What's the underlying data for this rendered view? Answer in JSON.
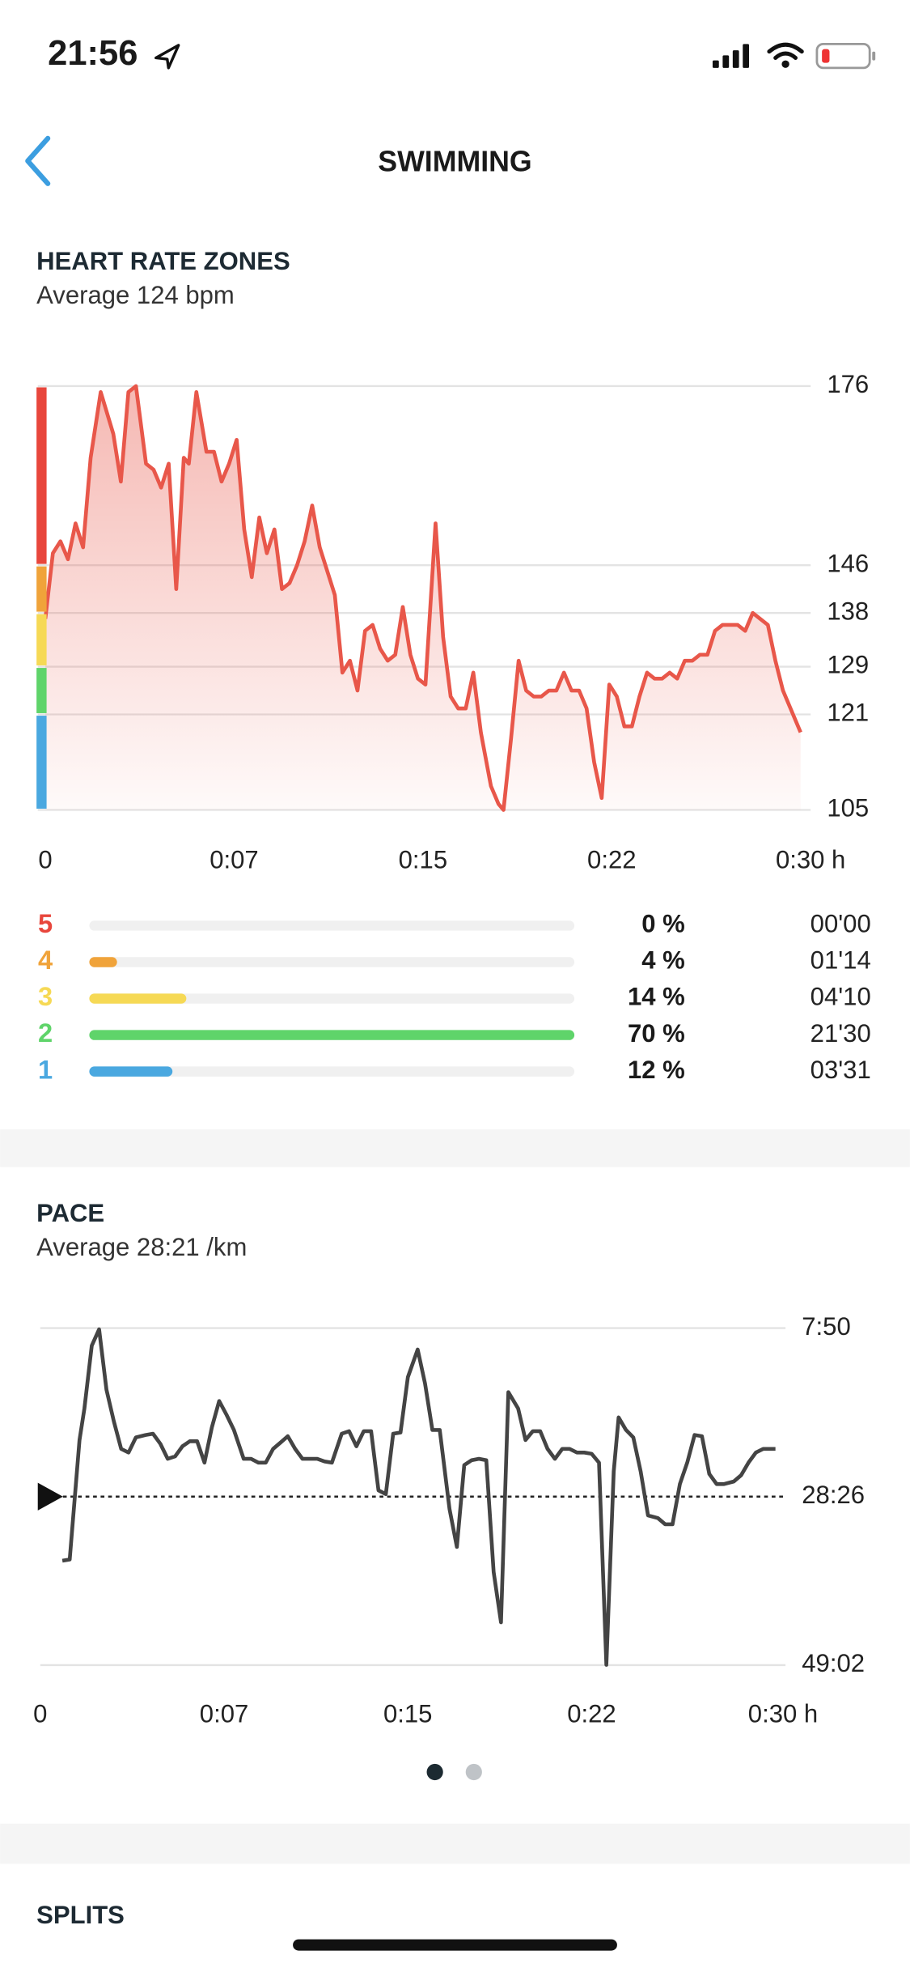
{
  "status_bar": {
    "time": "21:56"
  },
  "header": {
    "title": "SWIMMING"
  },
  "heart_rate": {
    "title": "HEART RATE ZONES",
    "subtitle": "Average 124 bpm",
    "chart_data": {
      "type": "area",
      "color": "#e8574a",
      "xlim": [
        0,
        30
      ],
      "xticks": [
        0,
        {
          "value": 7.5,
          "label": "0:07"
        },
        {
          "value": 15,
          "label": "0:15"
        },
        {
          "value": 22.5,
          "label": "0:22"
        },
        {
          "value": 30,
          "label": "0:30 h"
        }
      ],
      "ylim": [
        105,
        176
      ],
      "yticks": [
        105,
        121,
        129,
        138,
        146,
        176
      ],
      "grid": true,
      "x": [
        0,
        0.3,
        0.6,
        0.9,
        1.2,
        1.5,
        1.8,
        2.2,
        2.7,
        3.0,
        3.3,
        3.6,
        4.0,
        4.3,
        4.6,
        4.9,
        5.2,
        5.5,
        5.7,
        6.0,
        6.4,
        6.7,
        7.0,
        7.3,
        7.6,
        7.9,
        8.2,
        8.5,
        8.8,
        9.1,
        9.4,
        9.7,
        10.0,
        10.3,
        10.6,
        10.9,
        11.2,
        11.5,
        11.8,
        12.1,
        12.4,
        12.7,
        13.0,
        13.3,
        13.6,
        13.9,
        14.2,
        14.5,
        14.8,
        15.1,
        15.5,
        15.8,
        16.1,
        16.4,
        16.7,
        17.0,
        17.3,
        17.7,
        18.0,
        18.2,
        18.5,
        18.8,
        19.1,
        19.4,
        19.7,
        20.0,
        20.3,
        20.6,
        20.9,
        21.2,
        21.5,
        21.8,
        22.1,
        22.4,
        22.7,
        23.0,
        23.3,
        23.6,
        23.9,
        24.2,
        24.5,
        24.8,
        25.1,
        25.4,
        25.7,
        26.0,
        26.3,
        26.6,
        26.9,
        27.2,
        27.5,
        27.8,
        28.1,
        28.4,
        28.7,
        29.0,
        29.3,
        29.6,
        30.0
      ],
      "values": [
        137,
        148,
        150,
        147,
        153,
        149,
        164,
        175,
        168,
        160,
        175,
        176,
        163,
        162,
        159,
        163,
        142,
        164,
        163,
        175,
        165,
        165,
        160,
        163,
        167,
        152,
        144,
        154,
        148,
        152,
        142,
        143,
        146,
        150,
        156,
        149,
        145,
        141,
        128,
        130,
        125,
        135,
        136,
        132,
        130,
        131,
        139,
        131,
        127,
        126,
        153,
        134,
        124,
        122,
        122,
        128,
        118,
        109,
        106,
        105,
        117,
        130,
        125,
        124,
        124,
        125,
        125,
        128,
        125,
        125,
        122,
        113,
        107,
        126,
        124,
        119,
        119,
        124,
        128,
        127,
        127,
        128,
        127,
        130,
        130,
        131,
        131,
        135,
        136,
        136,
        136,
        135,
        138,
        137,
        136,
        130,
        125,
        122,
        118
      ]
    },
    "zones": [
      {
        "zone": 5,
        "color": "#e8463c",
        "percent": 0,
        "percent_label": "0 %",
        "duration": "00'00"
      },
      {
        "zone": 4,
        "color": "#f0a33a",
        "percent": 4,
        "percent_label": "4 %",
        "duration": "01'14"
      },
      {
        "zone": 3,
        "color": "#f6d955",
        "percent": 14,
        "percent_label": "14 %",
        "duration": "04'10"
      },
      {
        "zone": 2,
        "color": "#5fd46a",
        "percent": 70,
        "percent_label": "70 %",
        "duration": "21'30"
      },
      {
        "zone": 1,
        "color": "#4aa8e0",
        "percent": 12,
        "percent_label": "12 %",
        "duration": "03'31"
      }
    ]
  },
  "pace": {
    "title": "PACE",
    "subtitle": "Average 28:21 /km",
    "chart_data": {
      "type": "line",
      "color": "#444444",
      "xlim": [
        0,
        30
      ],
      "xticks": [
        0,
        {
          "value": 7.5,
          "label": "0:07"
        },
        {
          "value": 15,
          "label": "0:15"
        },
        {
          "value": 22.5,
          "label": "0:22"
        },
        {
          "value": 30,
          "label": "0:30 h"
        }
      ],
      "ylim": [
        470,
        2942
      ],
      "y_inverted": true,
      "yticks": [
        {
          "value": 470,
          "label": "7:50"
        },
        {
          "value": 1706,
          "label": "28:26"
        },
        {
          "value": 2942,
          "label": "49:02"
        }
      ],
      "grid": true,
      "x": [
        0.9,
        1.2,
        1.6,
        1.8,
        2.1,
        2.4,
        2.7,
        3.0,
        3.3,
        3.6,
        3.9,
        4.3,
        4.6,
        4.9,
        5.2,
        5.5,
        5.8,
        6.1,
        6.4,
        6.7,
        7.0,
        7.3,
        7.6,
        7.9,
        8.3,
        8.6,
        8.9,
        9.2,
        9.5,
        9.8,
        10.1,
        10.4,
        10.7,
        11.0,
        11.3,
        11.6,
        11.9,
        12.3,
        12.6,
        12.9,
        13.2,
        13.5,
        13.8,
        14.1,
        14.4,
        14.7,
        15.0,
        15.4,
        15.7,
        16.0,
        16.3,
        16.7,
        17.0,
        17.3,
        17.6,
        17.9,
        18.2,
        18.5,
        18.8,
        19.1,
        19.5,
        19.8,
        20.1,
        20.4,
        20.7,
        21.0,
        21.3,
        21.6,
        21.9,
        22.2,
        22.5,
        22.8,
        23.1,
        23.4,
        23.6,
        23.9,
        24.2,
        24.5,
        24.8,
        25.2,
        25.5,
        25.8,
        26.1,
        26.4,
        26.7,
        27.0,
        27.3,
        27.6,
        27.9,
        28.3,
        28.6,
        28.9,
        29.2,
        29.5,
        30.0
      ],
      "values": [
        2176,
        2167,
        1291,
        1060,
        599,
        479,
        922,
        1153,
        1356,
        1383,
        1272,
        1254,
        1245,
        1319,
        1429,
        1411,
        1337,
        1300,
        1300,
        1457,
        1199,
        1005,
        1106,
        1217,
        1429,
        1429,
        1457,
        1457,
        1356,
        1310,
        1263,
        1356,
        1429,
        1429,
        1429,
        1448,
        1457,
        1245,
        1226,
        1337,
        1226,
        1226,
        1660,
        1688,
        1245,
        1236,
        830,
        627,
        876,
        1217,
        1217,
        1798,
        2075,
        1475,
        1439,
        1429,
        1439,
        2259,
        2628,
        940,
        1060,
        1291,
        1226,
        1226,
        1356,
        1429,
        1356,
        1356,
        1383,
        1383,
        1392,
        1457,
        2940,
        1522,
        1125,
        1217,
        1272,
        1522,
        1844,
        1863,
        1909,
        1909,
        1614,
        1457,
        1254,
        1263,
        1540,
        1614,
        1614,
        1595,
        1549,
        1457,
        1383,
        1356,
        1356
      ]
    }
  },
  "splits": {
    "title": "SPLITS"
  }
}
